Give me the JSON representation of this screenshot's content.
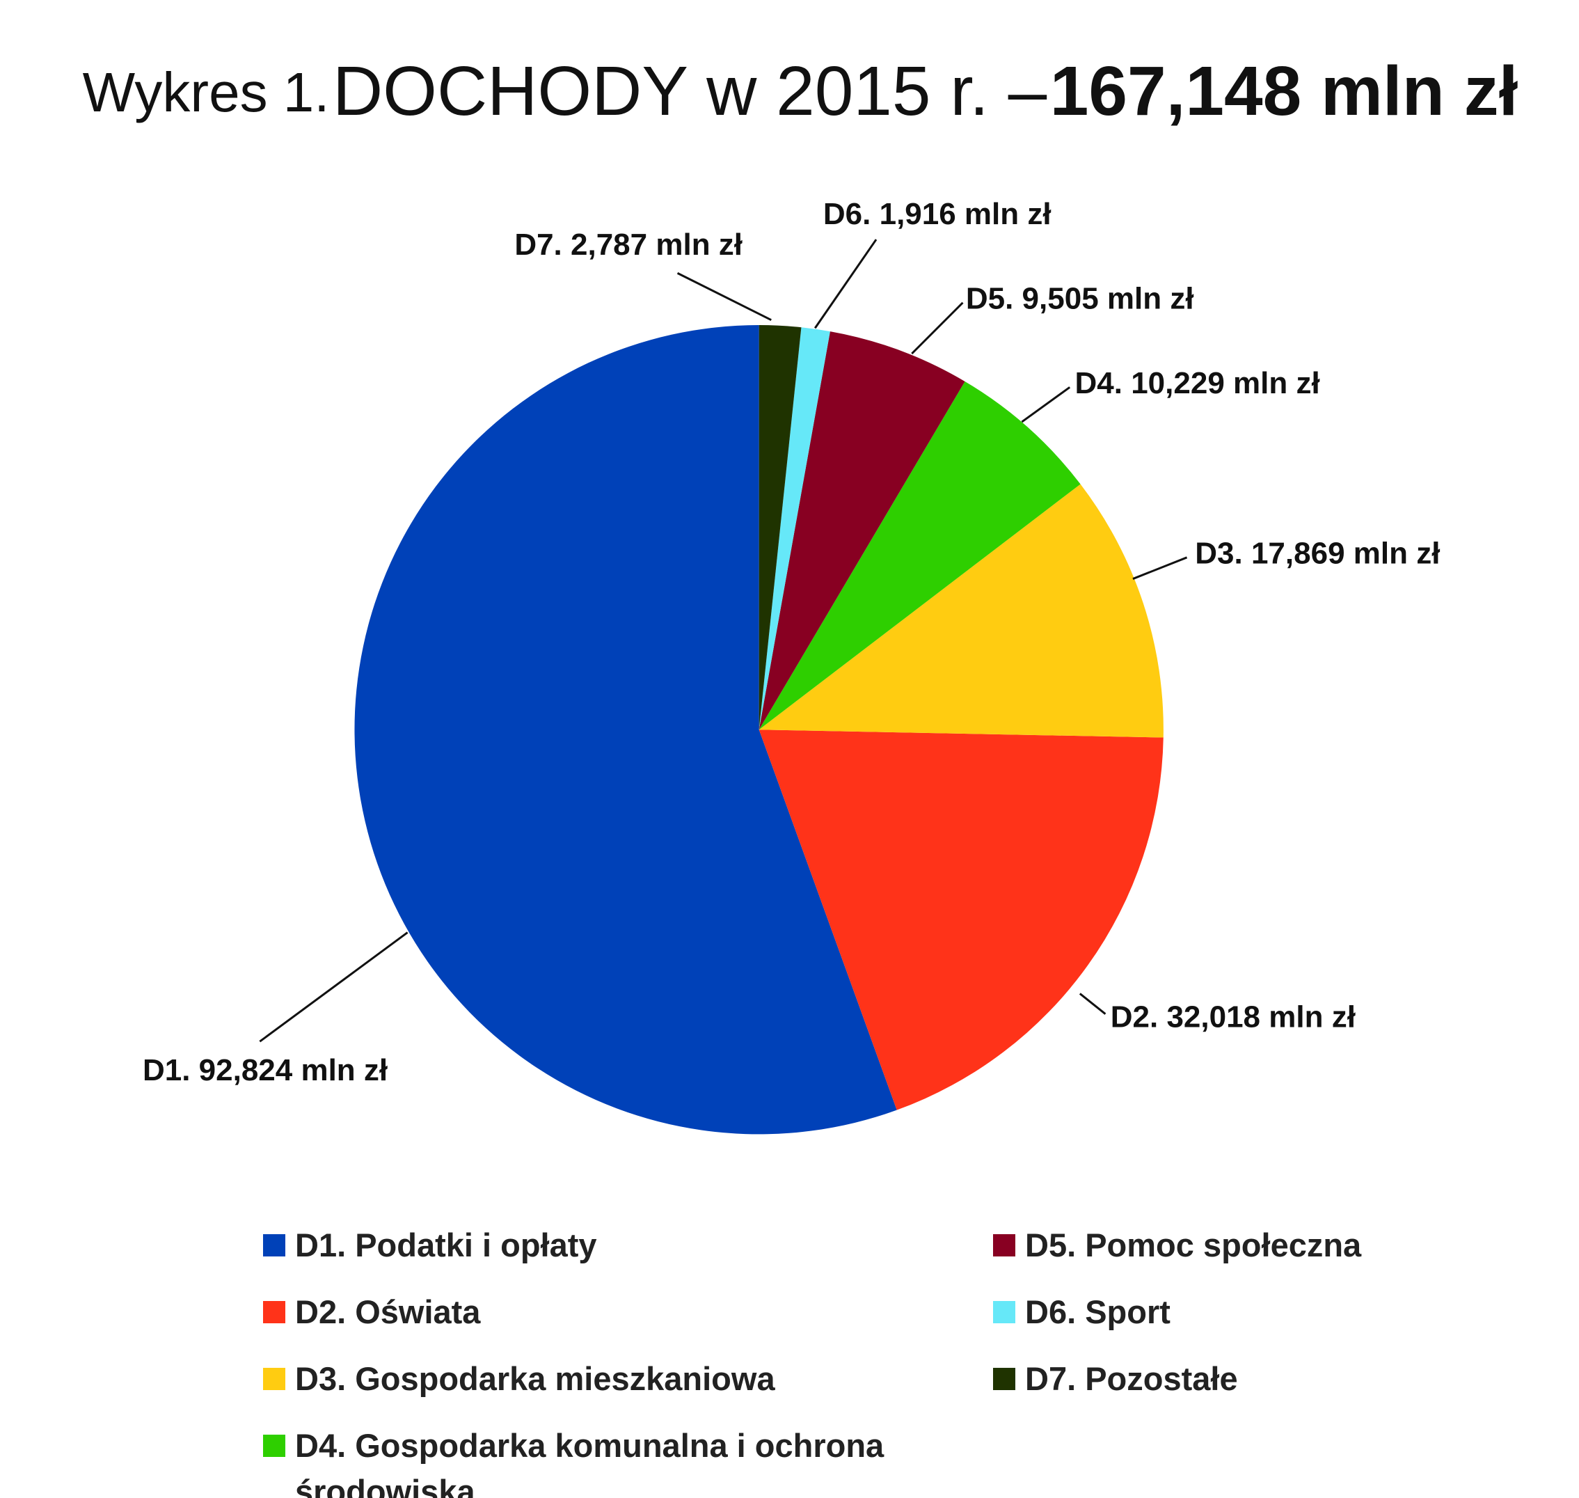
{
  "chart_data": {
    "type": "pie",
    "title": [
      "Wykres 1.",
      "DOCHODY w 2015 r. –",
      "167,148 mln zł"
    ],
    "categories": [
      "D1. Podatki i opłaty",
      "D2. Oświata",
      "D3. Gospodarka mieszkaniowa",
      "D4. Gospodarka komunalna i ochrona środowiska",
      "D5. Pomoc społeczna",
      "D6. Sport",
      "D7. Pozostałe"
    ],
    "values": [
      92.824,
      32.018,
      17.869,
      10.229,
      9.505,
      1.916,
      2.787
    ],
    "value_labels": [
      "D1. 92,824 mln zł",
      "D2. 32,018 mln zł",
      "D3. 17,869 mln zł",
      "D4. 10,229 mln zł",
      "D5. 9,505 mln zł",
      "D6. 1,916 mln zł",
      "D7. 2,787 mln zł"
    ],
    "colors": [
      "#0041b8",
      "#ff3319",
      "#ffcc11",
      "#2ecf00",
      "#880022",
      "#66e8f8",
      "#1f3300"
    ]
  }
}
